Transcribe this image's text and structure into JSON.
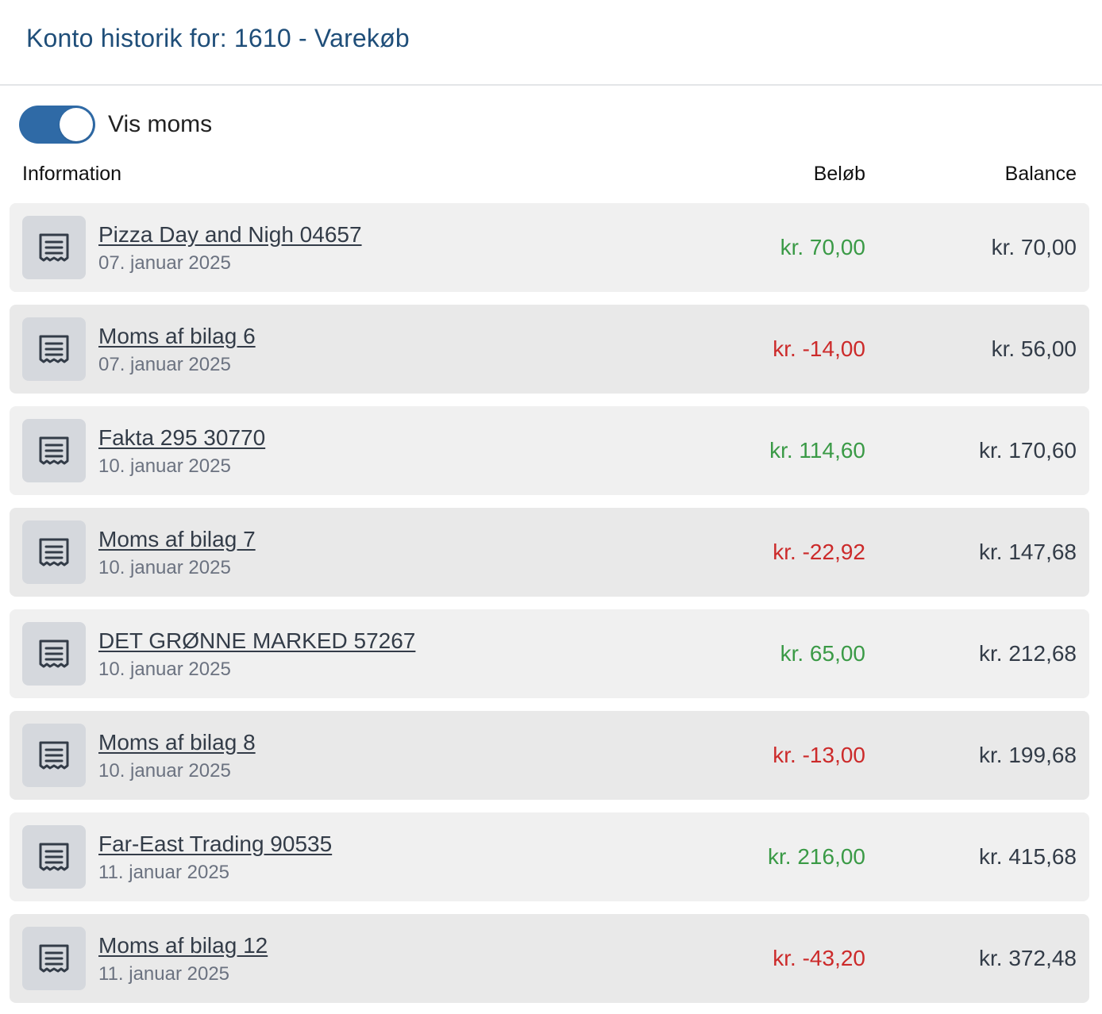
{
  "header": {
    "title": "Konto historik for: 1610 - Varekøb"
  },
  "toggle": {
    "label": "Vis moms",
    "checked": true
  },
  "columns": {
    "information": "Information",
    "amount": "Beløb",
    "balance": "Balance"
  },
  "colors": {
    "accent": "#2f6aa6",
    "title": "#1f4e79",
    "positive": "#3a9a46",
    "negative": "#cc2a2a"
  },
  "rows": [
    {
      "title": "Pizza Day and Nigh 04657",
      "date": "07. januar 2025",
      "amount": "kr. 70,00",
      "sign": "pos",
      "balance": "kr. 70,00",
      "icon": "receipt-icon"
    },
    {
      "title": "Moms af bilag 6",
      "date": "07. januar 2025",
      "amount": "kr. -14,00",
      "sign": "neg",
      "balance": "kr. 56,00",
      "icon": "receipt-icon"
    },
    {
      "title": "Fakta 295 30770",
      "date": "10. januar 2025",
      "amount": "kr. 114,60",
      "sign": "pos",
      "balance": "kr. 170,60",
      "icon": "receipt-icon"
    },
    {
      "title": "Moms af bilag 7",
      "date": "10. januar 2025",
      "amount": "kr. -22,92",
      "sign": "neg",
      "balance": "kr. 147,68",
      "icon": "receipt-icon"
    },
    {
      "title": "DET GRØNNE MARKED 57267",
      "date": "10. januar 2025",
      "amount": "kr. 65,00",
      "sign": "pos",
      "balance": "kr. 212,68",
      "icon": "receipt-icon"
    },
    {
      "title": "Moms af bilag 8",
      "date": "10. januar 2025",
      "amount": "kr. -13,00",
      "sign": "neg",
      "balance": "kr. 199,68",
      "icon": "receipt-icon"
    },
    {
      "title": "Far-East Trading 90535",
      "date": "11. januar 2025",
      "amount": "kr. 216,00",
      "sign": "pos",
      "balance": "kr. 415,68",
      "icon": "receipt-icon"
    },
    {
      "title": "Moms af bilag 12",
      "date": "11. januar 2025",
      "amount": "kr. -43,20",
      "sign": "neg",
      "balance": "kr. 372,48",
      "icon": "receipt-icon"
    }
  ]
}
